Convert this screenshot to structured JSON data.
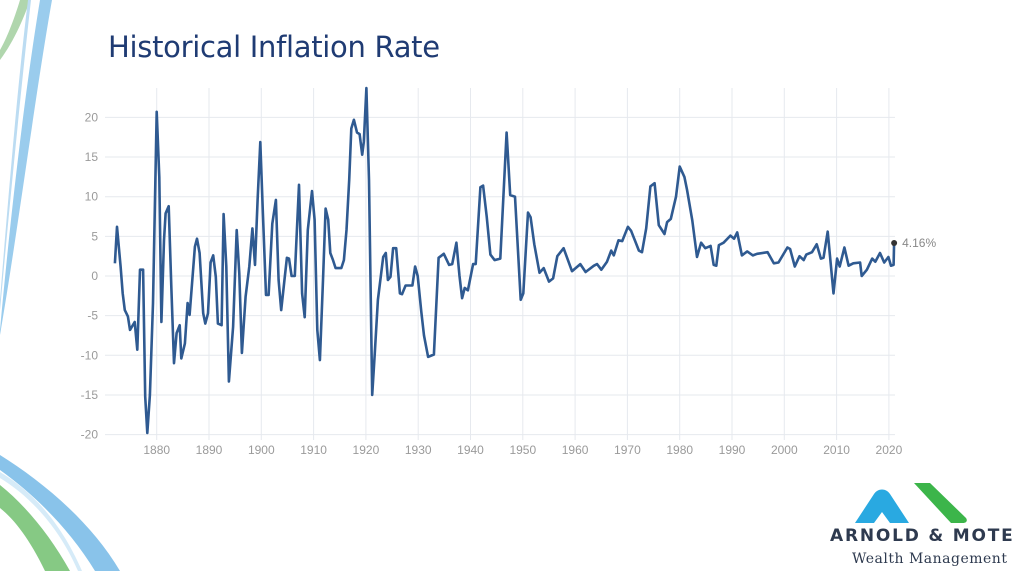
{
  "slide": {
    "title": "Historical Inflation Rate"
  },
  "logo": {
    "brand": "ARNOLD & MOTE",
    "subtitle": "Wealth Management",
    "colors": {
      "blue": "#29a9e1",
      "green": "#3cb54a"
    }
  },
  "chart_data": {
    "type": "line",
    "title": "",
    "xlabel": "",
    "ylabel": "",
    "xlim": [
      1872,
      2021
    ],
    "ylim": [
      -20,
      23.7
    ],
    "x_ticks": [
      1880,
      1890,
      1900,
      1910,
      1920,
      1930,
      1940,
      1950,
      1960,
      1970,
      1980,
      1990,
      2000,
      2010,
      2020
    ],
    "y_ticks": [
      -20,
      -15,
      -10,
      -5,
      0,
      5,
      10,
      15,
      20
    ],
    "grid": true,
    "line_color": "#2f5a91",
    "end_label": "4.16%",
    "series": [
      {
        "x": [
          1872,
          1872.4,
          1873.1,
          1873.5,
          1873.9,
          1874.5,
          1874.9,
          1875.8,
          1876.3,
          1876.8,
          1877.4,
          1877.8,
          1878.2,
          1878.7,
          1879.3,
          1880,
          1880.5,
          1880.9,
          1881.4,
          1881.7,
          1882.3,
          1882.8,
          1883.3,
          1883.8,
          1884.4,
          1884.7,
          1885.4,
          1885.9,
          1886.3,
          1887.3,
          1887.7,
          1888.2,
          1888.9,
          1889.3,
          1889.8,
          1890.3,
          1890.8,
          1891.3,
          1891.7,
          1892.4,
          1892.8,
          1893.3,
          1893.8,
          1894.6,
          1895.3,
          1895.8,
          1896.3,
          1897,
          1897.7,
          1898.3,
          1898.8,
          1899.3,
          1899.8,
          1900.3,
          1900.9,
          1901.4,
          1902.1,
          1902.8,
          1903.3,
          1903.8,
          1904.5,
          1904.9,
          1905.3,
          1905.8,
          1906.4,
          1906.8,
          1907.2,
          1907.8,
          1908.3,
          1908.9,
          1909.7,
          1910.2,
          1910.7,
          1911.2,
          1911.8,
          1912.3,
          1912.8,
          1913.2,
          1913.7,
          1914.2,
          1915.3,
          1915.8,
          1916.3,
          1916.8,
          1917.2,
          1917.7,
          1918.3,
          1918.8,
          1919.3,
          1919.6,
          1920.1,
          1920.6,
          1921.2,
          1921.7,
          1922.3,
          1923.3,
          1923.8,
          1924.2,
          1924.7,
          1925.2,
          1925.8,
          1926.5,
          1926.9,
          1927.6,
          1928.9,
          1929.4,
          1929.9,
          1930.6,
          1931.1,
          1931.9,
          1933,
          1933.9,
          1934.9,
          1935.9,
          1936.5,
          1937.3,
          1937.9,
          1938.4,
          1938.9,
          1939.5,
          1940.5,
          1941,
          1941.9,
          1942.4,
          1943.1,
          1943.8,
          1944.6,
          1945.7,
          1946.9,
          1947.6,
          1948.5,
          1949.6,
          1950.1,
          1951,
          1951.5,
          1952.2,
          1953.2,
          1954,
          1955,
          1955.8,
          1956.6,
          1957.8,
          1959.4,
          1961,
          1962,
          1963.6,
          1964.2,
          1965,
          1966.1,
          1966.9,
          1967.4,
          1968.3,
          1969,
          1970.1,
          1970.7,
          1972.2,
          1972.8,
          1973.6,
          1974.4,
          1975.2,
          1976,
          1977.1,
          1977.6,
          1978.3,
          1979.3,
          1980,
          1980.9,
          1981.4,
          1982.4,
          1983.3,
          1984.1,
          1984.9,
          1985.9,
          1986.5,
          1987,
          1987.5,
          1988.4,
          1989.7,
          1990.4,
          1991,
          1991.9,
          1992.9,
          1994,
          1994.8,
          1996.8,
          1998,
          1998.9,
          2000.6,
          2001.1,
          2002,
          2002.9,
          2003.7,
          2004.2,
          2005.3,
          2006.2,
          2007,
          2007.5,
          2008.3,
          2009.4,
          2010.1,
          2010.6,
          2011.5,
          2012.3,
          2013.2,
          2014.5,
          2014.8,
          2015.8,
          2016.8,
          2017.4,
          2018.3,
          2019.1,
          2019.9,
          2020.4,
          2020.9,
          2021
        ],
        "y": [
          1.6,
          6.2,
          1.2,
          -2.2,
          -4.3,
          -5.1,
          -6.8,
          -5.8,
          -9.3,
          0.8,
          0.8,
          -15.2,
          -19.8,
          -15,
          -3.4,
          20.7,
          12.5,
          -5.8,
          4.5,
          7.9,
          8.8,
          -1.3,
          -11,
          -7.2,
          -6.2,
          -10.4,
          -8.5,
          -3.4,
          -4.9,
          3.7,
          4.7,
          2.9,
          -4.7,
          -6,
          -4.7,
          1.7,
          2.6,
          -0.1,
          -6,
          -6.2,
          7.8,
          1.2,
          -13.3,
          -6.4,
          5.8,
          0.3,
          -9.7,
          -2.6,
          1.2,
          6,
          1.4,
          9.6,
          16.9,
          7.9,
          -2.4,
          -2.4,
          6.6,
          9.6,
          -0.5,
          -4.3,
          -0.1,
          2.3,
          2.2,
          0,
          0,
          5.8,
          11.5,
          -2.2,
          -5.2,
          5.8,
          10.7,
          7.1,
          -6.8,
          -10.6,
          -0.5,
          8.5,
          7.1,
          2.9,
          2,
          1,
          1,
          2,
          5.8,
          12.1,
          18.6,
          19.7,
          18.1,
          17.9,
          15.3,
          16.9,
          23.7,
          12.1,
          -15,
          -9.7,
          -3,
          2.4,
          2.9,
          -0.5,
          -0.1,
          3.5,
          3.5,
          -2.2,
          -2.3,
          -1.2,
          -1.2,
          1.2,
          0,
          -4.5,
          -7.5,
          -10.2,
          -9.9,
          2.3,
          2.8,
          1.4,
          1.5,
          4.2,
          0,
          -2.8,
          -1.5,
          -1.8,
          1.5,
          1.5,
          11.2,
          11.4,
          7.5,
          2.7,
          2,
          2.2,
          18.1,
          10.2,
          10,
          -3,
          -2.2,
          8,
          7.4,
          4,
          0.4,
          1,
          -0.7,
          -0.3,
          2.5,
          3.5,
          0.6,
          1.5,
          0.5,
          1.3,
          1.5,
          0.8,
          1.8,
          3.2,
          2.6,
          4.5,
          4.4,
          6.2,
          5.7,
          3.2,
          3,
          6,
          11.3,
          11.7,
          6.4,
          5.3,
          6.8,
          7.2,
          10,
          13.8,
          12.5,
          10.9,
          7,
          2.4,
          4.2,
          3.5,
          3.8,
          1.4,
          1.3,
          3.9,
          4.2,
          5.1,
          4.7,
          5.5,
          2.6,
          3.1,
          2.6,
          2.8,
          3,
          1.6,
          1.7,
          3.6,
          3.4,
          1.2,
          2.5,
          2,
          2.7,
          3,
          4,
          2.2,
          2.3,
          5.6,
          -2.2,
          2.2,
          1.2,
          3.6,
          1.3,
          1.6,
          1.7,
          0,
          0.8,
          2.2,
          1.8,
          2.9,
          1.7,
          2.4,
          1.3,
          1.4,
          4.16
        ]
      }
    ]
  }
}
